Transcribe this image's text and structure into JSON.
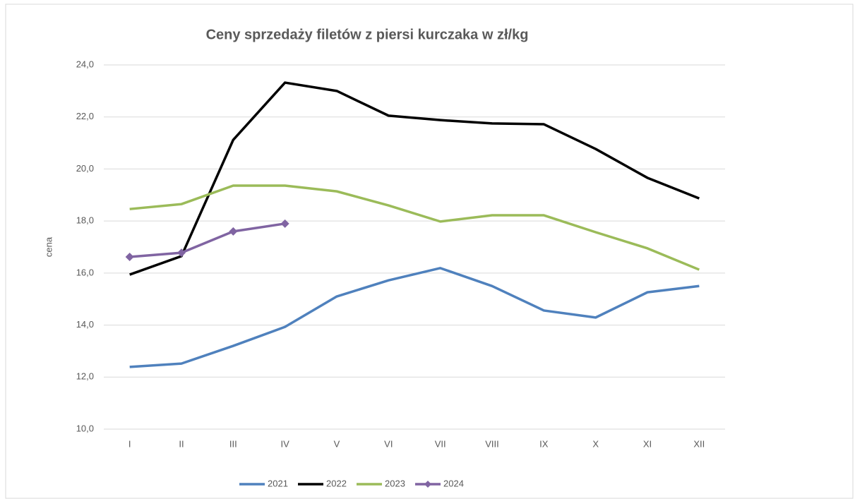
{
  "chart_data": {
    "type": "line",
    "title": "Ceny sprzedaży filetów z piersi kurczaka w zł/kg",
    "ylabel": "cena",
    "categories": [
      "I",
      "II",
      "III",
      "IV",
      "V",
      "VI",
      "VII",
      "VIII",
      "IX",
      "X",
      "XI",
      "XII"
    ],
    "ylim": [
      10,
      24
    ],
    "yticks": [
      {
        "value": 10,
        "label": "10,0"
      },
      {
        "value": 12,
        "label": "12,0"
      },
      {
        "value": 14,
        "label": "14,0"
      },
      {
        "value": 16,
        "label": "16,0"
      },
      {
        "value": 18,
        "label": "18,0"
      },
      {
        "value": 20,
        "label": "20,0"
      },
      {
        "value": 22,
        "label": "22,0"
      },
      {
        "value": 24,
        "label": "24,0"
      }
    ],
    "grid": true,
    "legend": "bottom",
    "series": [
      {
        "name": "2021",
        "color": "#4f81bd",
        "values": [
          12.39,
          12.52,
          13.2,
          13.93,
          15.1,
          15.72,
          16.19,
          15.5,
          14.56,
          14.29,
          15.26,
          15.5
        ]
      },
      {
        "name": "2022",
        "color": "#000000",
        "values": [
          15.94,
          16.65,
          21.12,
          23.32,
          23.0,
          22.05,
          21.88,
          21.75,
          21.72,
          20.77,
          19.66,
          18.87
        ]
      },
      {
        "name": "2023",
        "color": "#9bbb59",
        "values": [
          18.46,
          18.65,
          19.36,
          19.36,
          19.14,
          18.6,
          17.98,
          18.22,
          18.22,
          17.57,
          16.95,
          16.13
        ]
      },
      {
        "name": "2024",
        "color": "#8064a2",
        "marker": "diamond",
        "values": [
          16.62,
          16.78,
          17.6,
          17.9,
          null,
          null,
          null,
          null,
          null,
          null,
          null,
          null
        ]
      }
    ]
  }
}
